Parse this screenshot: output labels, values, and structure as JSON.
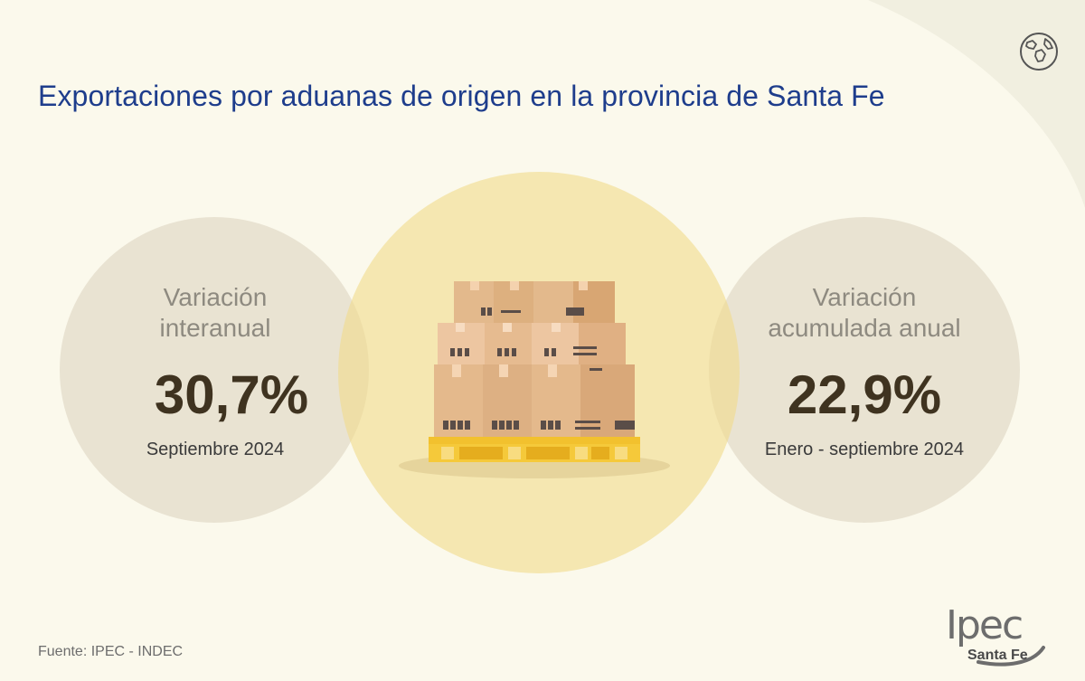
{
  "title": "Exportaciones por aduanas de origen en la provincia de Santa Fe",
  "stats": {
    "left": {
      "label_line1": "Variación",
      "label_line2": "interanual",
      "value": "30,7%",
      "period": "Septiembre 2024"
    },
    "right": {
      "label_line1": "Variación",
      "label_line2": "acumulada anual",
      "value": "22,9%",
      "period": "Enero - septiembre 2024"
    }
  },
  "illustration": "boxes-on-pallet",
  "source": "Fuente: IPEC - INDEC",
  "logo": {
    "main": "Ipec",
    "sub": "Santa Fe"
  },
  "icons": [
    "globe-icon",
    "boxes-pallet-icon"
  ],
  "colors": {
    "background": "#fbf9ec",
    "title": "#1e3d8c",
    "side_circles": "#dcd4c0",
    "center_circle": "#f1dc8c",
    "value_text": "#3f3320",
    "pallet": "#f2c12e"
  }
}
